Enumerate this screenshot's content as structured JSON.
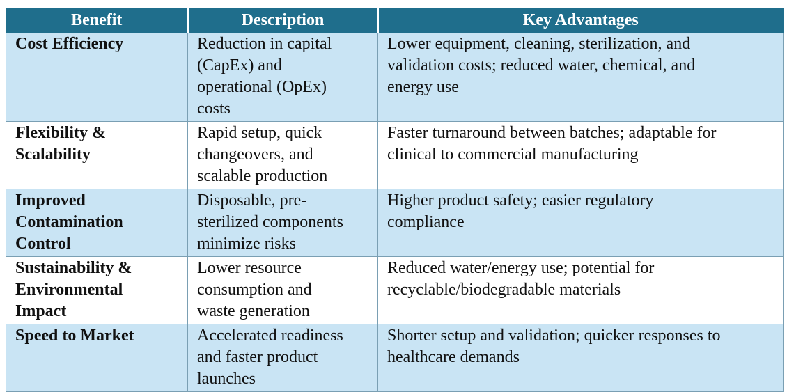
{
  "table": {
    "headers": [
      "Benefit",
      "Description",
      "Key Advantages"
    ],
    "rows": [
      {
        "benefit": [
          "Cost Efficiency"
        ],
        "description": [
          "Reduction in capital",
          "(CapEx) and",
          "operational (OpEx)",
          "costs"
        ],
        "advantages": [
          "Lower equipment, cleaning, sterilization, and",
          "validation costs; reduced water, chemical, and",
          "energy use"
        ]
      },
      {
        "benefit": [
          "Flexibility &",
          "Scalability"
        ],
        "description": [
          "Rapid setup, quick",
          "changeovers, and",
          "scalable production"
        ],
        "advantages": [
          "Faster turnaround between batches; adaptable for",
          "clinical to commercial manufacturing"
        ]
      },
      {
        "benefit": [
          "Improved",
          "Contamination",
          "Control"
        ],
        "description": [
          "Disposable, pre-",
          "sterilized components",
          "minimize risks"
        ],
        "advantages": [
          "Higher product safety; easier regulatory",
          "compliance"
        ]
      },
      {
        "benefit": [
          "Sustainability &",
          "Environmental",
          "Impact"
        ],
        "description": [
          "Lower resource",
          "consumption and",
          "waste generation"
        ],
        "advantages": [
          "Reduced water/energy use; potential for",
          "recyclable/biodegradable materials"
        ]
      },
      {
        "benefit": [
          "Speed to Market"
        ],
        "description": [
          "Accelerated readiness",
          "and faster product",
          "launches"
        ],
        "advantages": [
          "Shorter setup and validation; quicker responses to",
          "healthcare demands"
        ]
      }
    ]
  },
  "colors": {
    "header_bg": "#1f6e8c",
    "header_text": "#ffffff",
    "row_blue": "#c9e4f4",
    "row_white": "#ffffff"
  }
}
